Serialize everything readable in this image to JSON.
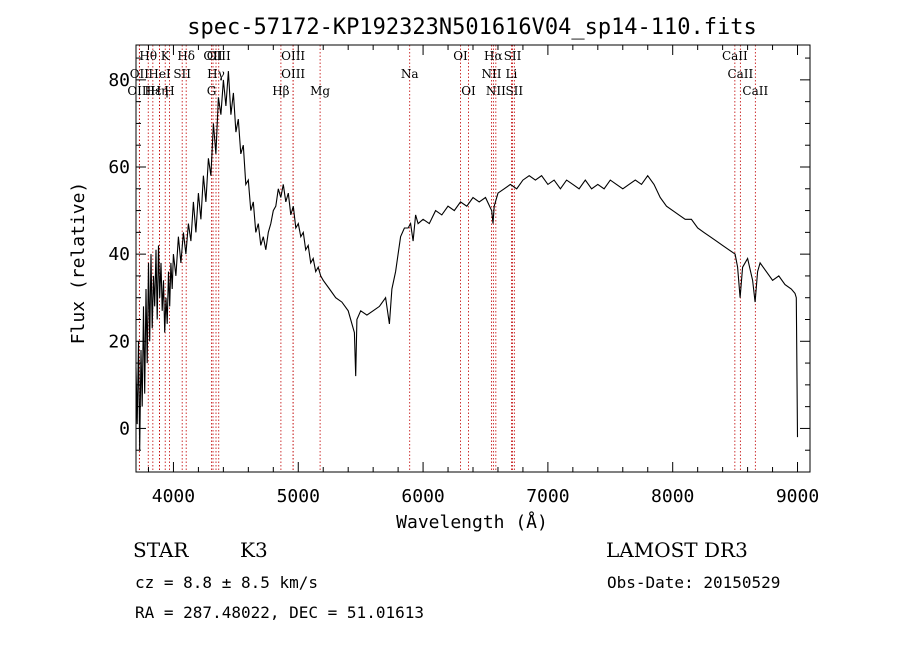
{
  "chart_data": {
    "type": "line",
    "title": "spec-57172-KP192323N501616V04_sp14-110.fits",
    "xlabel": "Wavelength (Å)",
    "ylabel": "Flux (relative)",
    "xlim": [
      3700,
      9100
    ],
    "ylim": [
      -10,
      88
    ],
    "x_ticks": [
      4000,
      5000,
      6000,
      7000,
      8000,
      9000
    ],
    "y_ticks": [
      0,
      20,
      40,
      60,
      80
    ],
    "series": [
      {
        "name": "spectrum",
        "points": [
          [
            3700,
            14
          ],
          [
            3710,
            1
          ],
          [
            3720,
            20
          ],
          [
            3730,
            -5
          ],
          [
            3740,
            18
          ],
          [
            3750,
            5
          ],
          [
            3760,
            28
          ],
          [
            3770,
            8
          ],
          [
            3780,
            32
          ],
          [
            3790,
            15
          ],
          [
            3800,
            38
          ],
          [
            3810,
            20
          ],
          [
            3820,
            40
          ],
          [
            3830,
            23
          ],
          [
            3840,
            35
          ],
          [
            3850,
            28
          ],
          [
            3860,
            41
          ],
          [
            3870,
            25
          ],
          [
            3880,
            42
          ],
          [
            3890,
            30
          ],
          [
            3900,
            38
          ],
          [
            3910,
            27
          ],
          [
            3920,
            34
          ],
          [
            3930,
            22
          ],
          [
            3940,
            30
          ],
          [
            3950,
            24
          ],
          [
            3960,
            36
          ],
          [
            3970,
            28
          ],
          [
            3980,
            38
          ],
          [
            3990,
            32
          ],
          [
            4000,
            40
          ],
          [
            4020,
            35
          ],
          [
            4040,
            44
          ],
          [
            4060,
            38
          ],
          [
            4080,
            45
          ],
          [
            4100,
            40
          ],
          [
            4120,
            47
          ],
          [
            4140,
            43
          ],
          [
            4160,
            52
          ],
          [
            4180,
            45
          ],
          [
            4200,
            54
          ],
          [
            4220,
            48
          ],
          [
            4240,
            58
          ],
          [
            4260,
            52
          ],
          [
            4280,
            62
          ],
          [
            4300,
            58
          ],
          [
            4320,
            70
          ],
          [
            4340,
            63
          ],
          [
            4360,
            76
          ],
          [
            4380,
            72
          ],
          [
            4400,
            80
          ],
          [
            4420,
            74
          ],
          [
            4440,
            82
          ],
          [
            4460,
            72
          ],
          [
            4480,
            77
          ],
          [
            4500,
            68
          ],
          [
            4520,
            71
          ],
          [
            4540,
            63
          ],
          [
            4560,
            65
          ],
          [
            4580,
            56
          ],
          [
            4600,
            57
          ],
          [
            4620,
            50
          ],
          [
            4640,
            52
          ],
          [
            4660,
            45
          ],
          [
            4680,
            47
          ],
          [
            4700,
            42
          ],
          [
            4720,
            44
          ],
          [
            4740,
            41
          ],
          [
            4760,
            45
          ],
          [
            4780,
            47
          ],
          [
            4800,
            50
          ],
          [
            4820,
            51
          ],
          [
            4840,
            55
          ],
          [
            4860,
            53
          ],
          [
            4880,
            56
          ],
          [
            4900,
            52
          ],
          [
            4920,
            54
          ],
          [
            4940,
            49
          ],
          [
            4960,
            51
          ],
          [
            4980,
            46
          ],
          [
            5000,
            47
          ],
          [
            5020,
            44
          ],
          [
            5040,
            45
          ],
          [
            5060,
            41
          ],
          [
            5080,
            42
          ],
          [
            5100,
            38
          ],
          [
            5120,
            39
          ],
          [
            5140,
            36
          ],
          [
            5160,
            37
          ],
          [
            5180,
            35
          ],
          [
            5200,
            34
          ],
          [
            5250,
            32
          ],
          [
            5300,
            30
          ],
          [
            5350,
            29
          ],
          [
            5400,
            27
          ],
          [
            5450,
            22
          ],
          [
            5460,
            12
          ],
          [
            5470,
            25
          ],
          [
            5500,
            27
          ],
          [
            5550,
            26
          ],
          [
            5600,
            27
          ],
          [
            5650,
            28
          ],
          [
            5700,
            30
          ],
          [
            5730,
            24
          ],
          [
            5750,
            32
          ],
          [
            5780,
            36
          ],
          [
            5800,
            40
          ],
          [
            5820,
            44
          ],
          [
            5850,
            46
          ],
          [
            5880,
            46
          ],
          [
            5900,
            47
          ],
          [
            5920,
            43
          ],
          [
            5940,
            49
          ],
          [
            5960,
            47
          ],
          [
            6000,
            48
          ],
          [
            6050,
            47
          ],
          [
            6100,
            50
          ],
          [
            6150,
            49
          ],
          [
            6200,
            51
          ],
          [
            6250,
            50
          ],
          [
            6300,
            52
          ],
          [
            6350,
            51
          ],
          [
            6400,
            53
          ],
          [
            6450,
            52
          ],
          [
            6500,
            53
          ],
          [
            6550,
            50
          ],
          [
            6560,
            47
          ],
          [
            6570,
            51
          ],
          [
            6600,
            54
          ],
          [
            6650,
            55
          ],
          [
            6700,
            56
          ],
          [
            6750,
            55
          ],
          [
            6800,
            57
          ],
          [
            6850,
            58
          ],
          [
            6900,
            57
          ],
          [
            6950,
            58
          ],
          [
            7000,
            56
          ],
          [
            7050,
            57
          ],
          [
            7100,
            55
          ],
          [
            7150,
            57
          ],
          [
            7200,
            56
          ],
          [
            7250,
            55
          ],
          [
            7300,
            57
          ],
          [
            7350,
            55
          ],
          [
            7400,
            56
          ],
          [
            7450,
            55
          ],
          [
            7500,
            57
          ],
          [
            7550,
            56
          ],
          [
            7600,
            55
          ],
          [
            7650,
            56
          ],
          [
            7700,
            57
          ],
          [
            7750,
            56
          ],
          [
            7800,
            58
          ],
          [
            7850,
            56
          ],
          [
            7900,
            53
          ],
          [
            7950,
            51
          ],
          [
            8000,
            50
          ],
          [
            8050,
            49
          ],
          [
            8100,
            48
          ],
          [
            8150,
            48
          ],
          [
            8200,
            46
          ],
          [
            8250,
            45
          ],
          [
            8300,
            44
          ],
          [
            8350,
            43
          ],
          [
            8400,
            42
          ],
          [
            8450,
            41
          ],
          [
            8500,
            40
          ],
          [
            8520,
            37
          ],
          [
            8540,
            30
          ],
          [
            8560,
            37
          ],
          [
            8600,
            39
          ],
          [
            8640,
            34
          ],
          [
            8660,
            29
          ],
          [
            8680,
            36
          ],
          [
            8700,
            38
          ],
          [
            8750,
            36
          ],
          [
            8800,
            34
          ],
          [
            8850,
            35
          ],
          [
            8900,
            33
          ],
          [
            8950,
            32
          ],
          [
            8980,
            31
          ],
          [
            8990,
            30
          ],
          [
            9000,
            -2
          ]
        ]
      }
    ],
    "line_annotations": [
      {
        "label": "Hθ",
        "x": 3798,
        "row": 0
      },
      {
        "label": "OII",
        "x": 3727,
        "row": 1
      },
      {
        "label": "HeI",
        "x": 3889,
        "row": 1
      },
      {
        "label": "OIII",
        "x": 3727,
        "row": 2
      },
      {
        "label": "Hε",
        "x": 3835,
        "row": 2
      },
      {
        "label": "Hη",
        "x": 3888,
        "row": 2
      },
      {
        "label": "K",
        "x": 3934,
        "row": 0
      },
      {
        "label": "H",
        "x": 3968,
        "row": 2
      },
      {
        "label": "Hδ",
        "x": 4102,
        "row": 0
      },
      {
        "label": "SII",
        "x": 4070,
        "row": 1
      },
      {
        "label": "OII",
        "x": 4317,
        "row": 0
      },
      {
        "label": "Hγ",
        "x": 4341,
        "row": 1
      },
      {
        "label": "G",
        "x": 4305,
        "row": 2
      },
      {
        "label": "OIII",
        "x": 4363,
        "row": 0
      },
      {
        "label": "OIII",
        "x": 4959,
        "row": 0
      },
      {
        "label": "OIII",
        "x": 4959,
        "row": 1
      },
      {
        "label": "Hβ",
        "x": 4861,
        "row": 2
      },
      {
        "label": "Mg",
        "x": 5175,
        "row": 2
      },
      {
        "label": "Na",
        "x": 5893,
        "row": 1
      },
      {
        "label": "OI",
        "x": 6300,
        "row": 0
      },
      {
        "label": "OI",
        "x": 6364,
        "row": 2
      },
      {
        "label": "Hα",
        "x": 6563,
        "row": 0
      },
      {
        "label": "NII",
        "x": 6548,
        "row": 1
      },
      {
        "label": "NII",
        "x": 6583,
        "row": 2
      },
      {
        "label": "SII",
        "x": 6717,
        "row": 0
      },
      {
        "label": "Li",
        "x": 6708,
        "row": 1
      },
      {
        "label": "SII",
        "x": 6731,
        "row": 2
      },
      {
        "label": "CaII",
        "x": 8498,
        "row": 0
      },
      {
        "label": "CaII",
        "x": 8542,
        "row": 1
      },
      {
        "label": "CaII",
        "x": 8662,
        "row": 2
      }
    ]
  },
  "info": {
    "class_label": "STAR",
    "subclass": "K3",
    "cz": "cz = 8.8 ± 8.5 km/s",
    "coords": "RA = 287.48022, DEC =  51.01613",
    "survey": "LAMOST DR3",
    "obs_date": "Obs-Date: 20150529"
  },
  "colors": {
    "spectrum": "#000000",
    "line_marker": "#c00000",
    "axes": "#000000"
  }
}
